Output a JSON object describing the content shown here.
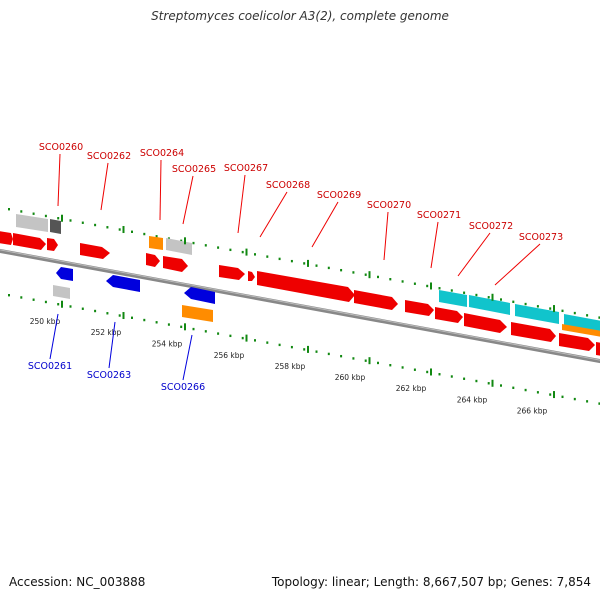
{
  "title": "Streptomyces coelicolor A3(2), complete genome",
  "footer": {
    "accession": "Accession: NC_003888",
    "stats": "Topology: linear; Length: 8,667,507 bp; Genes: 7,854"
  },
  "colors": {
    "forward_gene": "#ee0000",
    "reverse_gene": "#0000dd",
    "other_gene": "#ff8c00",
    "cyan_feature": "#11c4cc",
    "pseudo_gene": "#bbbbbb",
    "backbone": "#777777",
    "tick": "#118811",
    "forward_label": "#cc0000",
    "reverse_label": "#0000cc"
  },
  "scale": {
    "ticks": [
      "250 kbp",
      "252 kbp",
      "254 kbp",
      "256 kbp",
      "258 kbp",
      "260 kbp",
      "262 kbp",
      "264 kbp",
      "266 kbp"
    ]
  },
  "genes": {
    "forward": [
      "SCO0260",
      "SCO0262",
      "SCO0264",
      "SCO0265",
      "SCO0267",
      "SCO0268",
      "SCO0269",
      "SCO0270",
      "SCO0271",
      "SCO0272",
      "SCO0273"
    ],
    "reverse": [
      "SCO0261",
      "SCO0263",
      "SCO0266"
    ]
  }
}
